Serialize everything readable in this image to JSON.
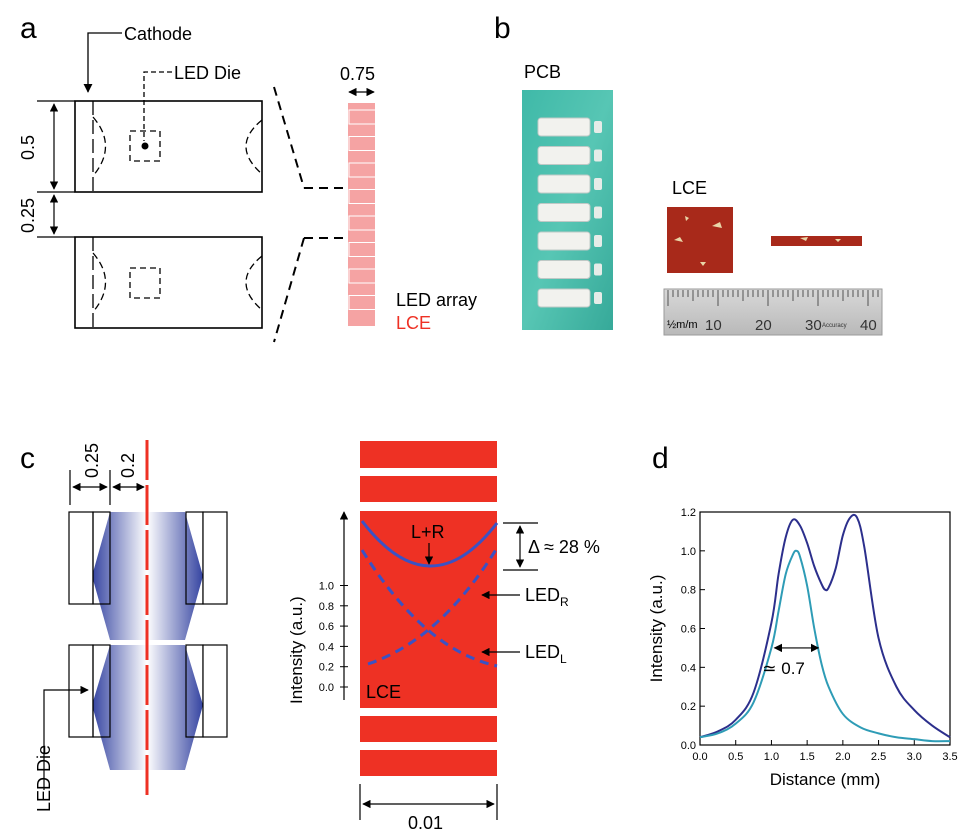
{
  "panels": {
    "a": {
      "letter": "a",
      "cathode_label": "Cathode",
      "die_label": "LED Die",
      "dim_height": "0.5",
      "dim_gap": "0.25",
      "dim_width": "0.75",
      "legend_led": "LED array",
      "legend_lce": "LCE",
      "lce_color": "#f5a3a3"
    },
    "b": {
      "letter": "b",
      "pcb_label": "PCB",
      "lce_label": "LCE",
      "ruler_unit": "½m/m",
      "ruler_ticks": [
        "10",
        "20",
        "30",
        "40"
      ],
      "ruler_brand": "Accuracy"
    },
    "c": {
      "letter": "c",
      "dim_left": "0.25",
      "dim_right": "0.2",
      "die_label": "LED Die",
      "ylabel": "Intensity (a.u.)",
      "yticks": [
        "0.0",
        "0.2",
        "0.4",
        "0.6",
        "0.8",
        "1.0"
      ],
      "curve_sum_label": "L+R",
      "delta_label": "Δ ≈ 28 %",
      "led_r_label": "LED",
      "led_r_sub": "R",
      "led_l_label": "LED",
      "led_l_sub": "L",
      "lce_label": "LCE",
      "width_label": "0.01",
      "lce_color": "#ee3124",
      "beam_color": "#2a3a9c"
    },
    "d": {
      "letter": "d",
      "fwhm_label": "≃ 0.7"
    }
  },
  "chart_data": {
    "type": "line",
    "xlabel": "Distance (mm)",
    "ylabel": "Intensity (a.u.)",
    "xlim": [
      0,
      3.5
    ],
    "ylim": [
      0,
      1.2
    ],
    "xticks": [
      "0.0",
      "0.5",
      "1.0",
      "1.5",
      "2.0",
      "2.5",
      "3.0",
      "3.5"
    ],
    "yticks": [
      "0.0",
      "0.2",
      "0.4",
      "0.6",
      "0.8",
      "1.0",
      "1.2"
    ],
    "grid": false,
    "series": [
      {
        "color": "#2c2f8c",
        "x": [
          0,
          0.25,
          0.5,
          0.75,
          1.0,
          1.1,
          1.2,
          1.3,
          1.4,
          1.5,
          1.6,
          1.7,
          1.75,
          1.8,
          1.9,
          2.0,
          2.1,
          2.2,
          2.3,
          2.5,
          2.75,
          3.0,
          3.25,
          3.5
        ],
        "y": [
          0.04,
          0.07,
          0.13,
          0.27,
          0.63,
          0.88,
          1.07,
          1.16,
          1.13,
          1.04,
          0.92,
          0.83,
          0.8,
          0.81,
          0.91,
          1.08,
          1.17,
          1.17,
          1.02,
          0.55,
          0.3,
          0.18,
          0.1,
          0.04
        ]
      },
      {
        "color": "#2e9cb6",
        "x": [
          0,
          0.25,
          0.5,
          0.75,
          1.0,
          1.1,
          1.2,
          1.3,
          1.35,
          1.4,
          1.5,
          1.6,
          1.7,
          1.8,
          2.0,
          2.25,
          2.5,
          2.75,
          3.0,
          3.25,
          3.5
        ],
        "y": [
          0.04,
          0.06,
          0.11,
          0.22,
          0.5,
          0.69,
          0.88,
          0.98,
          1.0,
          0.97,
          0.82,
          0.6,
          0.42,
          0.3,
          0.16,
          0.09,
          0.06,
          0.04,
          0.03,
          0.02,
          0.02
        ]
      }
    ],
    "annotations": [
      {
        "text": "≃ 0.7",
        "x": 1.32,
        "y": 0.5,
        "span": [
          1.0,
          1.7
        ]
      }
    ]
  }
}
